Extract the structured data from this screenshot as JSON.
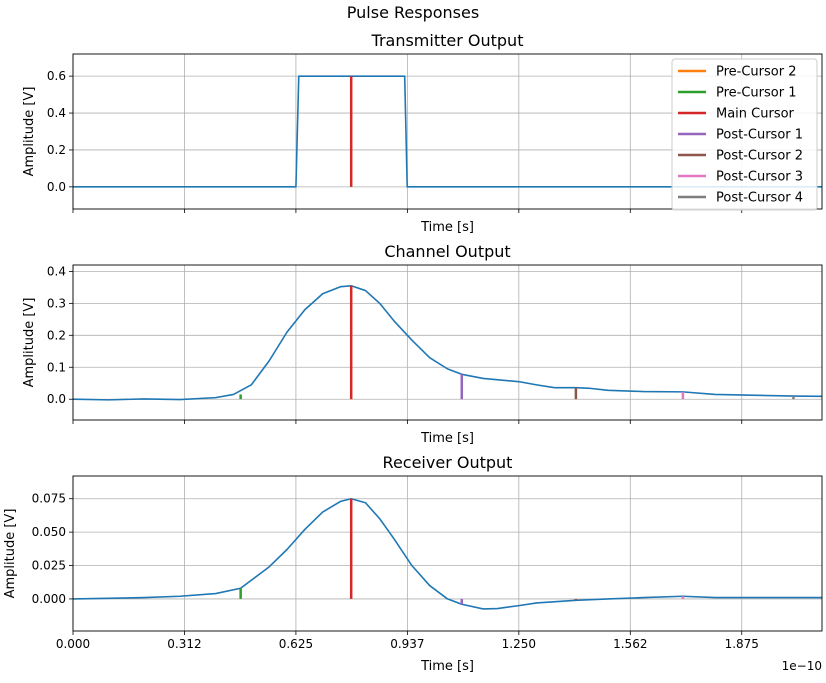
{
  "figure": {
    "suptitle": "Pulse Responses",
    "x_offset_label": "1e−10"
  },
  "colors": {
    "signal": "#1f77b4",
    "Pre-Cursor 2": "#ff7f0e",
    "Pre-Cursor 1": "#2ca02c",
    "Main Cursor": "#d62728",
    "Post-Cursor 1": "#9467bd",
    "Post-Cursor 2": "#8c564b",
    "Post-Cursor 3": "#e377c2",
    "Post-Cursor 4": "#7f7f7f",
    "grid": "#b0b0b0"
  },
  "legend": {
    "placement": "top-right of first panel",
    "entries": [
      "Pre-Cursor 2",
      "Pre-Cursor 1",
      "Main Cursor",
      "Post-Cursor 1",
      "Post-Cursor 2",
      "Post-Cursor 3",
      "Post-Cursor 4"
    ]
  },
  "chart_data": [
    {
      "type": "line",
      "title": "Transmitter Output",
      "xlabel": "Time [s]",
      "ylabel": "Amplitude [V]",
      "grid": true,
      "xlim": [
        0,
        2.1
      ],
      "ylim": [
        -0.12,
        0.72
      ],
      "x_tick_values": [
        0,
        0.3125,
        0.625,
        0.9375,
        1.25,
        1.5625,
        1.875
      ],
      "x_tick_labels": [],
      "y_tick_values": [
        0,
        0.2,
        0.4,
        0.6
      ],
      "y_tick_labels": [
        "0.0",
        "0.2",
        "0.4",
        "0.6"
      ],
      "series": [
        {
          "x": [
            0,
            0.625,
            0.633,
            0.93,
            0.937,
            2.1
          ],
          "values": [
            0,
            0,
            0.6,
            0.6,
            0,
            0
          ]
        }
      ],
      "cursors": [
        {
          "name": "Main Cursor",
          "x": 0.78,
          "y": 0.6
        }
      ]
    },
    {
      "type": "line",
      "title": "Channel Output",
      "xlabel": "Time [s]",
      "ylabel": "Amplitude [V]",
      "grid": true,
      "xlim": [
        0,
        2.1
      ],
      "ylim": [
        -0.065,
        0.42
      ],
      "x_tick_values": [
        0,
        0.3125,
        0.625,
        0.9375,
        1.25,
        1.5625,
        1.875
      ],
      "x_tick_labels": [],
      "y_tick_values": [
        0,
        0.1,
        0.2,
        0.3,
        0.4
      ],
      "y_tick_labels": [
        "0.0",
        "0.1",
        "0.2",
        "0.3",
        "0.4"
      ],
      "series": [
        {
          "x": [
            0,
            0.1,
            0.2,
            0.3,
            0.4,
            0.45,
            0.5,
            0.55,
            0.6,
            0.65,
            0.7,
            0.75,
            0.78,
            0.82,
            0.86,
            0.9,
            0.95,
            1.0,
            1.05,
            1.09,
            1.15,
            1.25,
            1.3,
            1.35,
            1.41,
            1.45,
            1.5,
            1.6,
            1.71,
            1.8,
            2.02,
            2.1
          ],
          "values": [
            0,
            -0.002,
            0.001,
            -0.001,
            0.005,
            0.015,
            0.045,
            0.12,
            0.21,
            0.28,
            0.33,
            0.352,
            0.355,
            0.34,
            0.3,
            0.245,
            0.185,
            0.13,
            0.095,
            0.078,
            0.065,
            0.055,
            0.045,
            0.036,
            0.036,
            0.034,
            0.028,
            0.024,
            0.023,
            0.015,
            0.01,
            0.009
          ]
        }
      ],
      "cursors": [
        {
          "name": "Pre-Cursor 1",
          "x": 0.47,
          "y": 0.015
        },
        {
          "name": "Main Cursor",
          "x": 0.78,
          "y": 0.355
        },
        {
          "name": "Post-Cursor 1",
          "x": 1.09,
          "y": 0.078
        },
        {
          "name": "Post-Cursor 2",
          "x": 1.41,
          "y": 0.036
        },
        {
          "name": "Post-Cursor 3",
          "x": 1.71,
          "y": 0.023
        },
        {
          "name": "Post-Cursor 4",
          "x": 2.02,
          "y": 0.01
        }
      ]
    },
    {
      "type": "line",
      "title": "Receiver Output",
      "xlabel": "Time [s]",
      "ylabel": "Amplitude [V]",
      "grid": true,
      "xlim": [
        0,
        2.1
      ],
      "ylim": [
        -0.024,
        0.092
      ],
      "x_tick_values": [
        0,
        0.3125,
        0.625,
        0.9375,
        1.25,
        1.5625,
        1.875
      ],
      "x_tick_labels": [
        "0.000",
        "0.312",
        "0.625",
        "0.937",
        "1.250",
        "1.562",
        "1.875"
      ],
      "y_tick_values": [
        0,
        0.025,
        0.05,
        0.075
      ],
      "y_tick_labels": [
        "0.000",
        "0.025",
        "0.050",
        "0.075"
      ],
      "series": [
        {
          "x": [
            0,
            0.2,
            0.3,
            0.4,
            0.47,
            0.55,
            0.6,
            0.65,
            0.7,
            0.75,
            0.78,
            0.82,
            0.86,
            0.9,
            0.95,
            1.0,
            1.05,
            1.09,
            1.15,
            1.19,
            1.25,
            1.3,
            1.41,
            1.5,
            1.6,
            1.71,
            1.8,
            1.9,
            2.1
          ],
          "values": [
            0,
            0.001,
            0.002,
            0.004,
            0.008,
            0.024,
            0.037,
            0.052,
            0.065,
            0.073,
            0.075,
            0.072,
            0.06,
            0.045,
            0.025,
            0.01,
            0.0,
            -0.004,
            -0.0075,
            -0.0072,
            -0.005,
            -0.003,
            -0.001,
            0.0,
            0.001,
            0.002,
            0.001,
            0.001,
            0.001
          ]
        }
      ],
      "cursors": [
        {
          "name": "Pre-Cursor 1",
          "x": 0.47,
          "y": 0.008
        },
        {
          "name": "Main Cursor",
          "x": 0.78,
          "y": 0.075
        },
        {
          "name": "Post-Cursor 1",
          "x": 1.09,
          "y": -0.004
        },
        {
          "name": "Post-Cursor 2",
          "x": 1.41,
          "y": -0.001
        },
        {
          "name": "Post-Cursor 3",
          "x": 1.71,
          "y": 0.002
        }
      ]
    }
  ]
}
